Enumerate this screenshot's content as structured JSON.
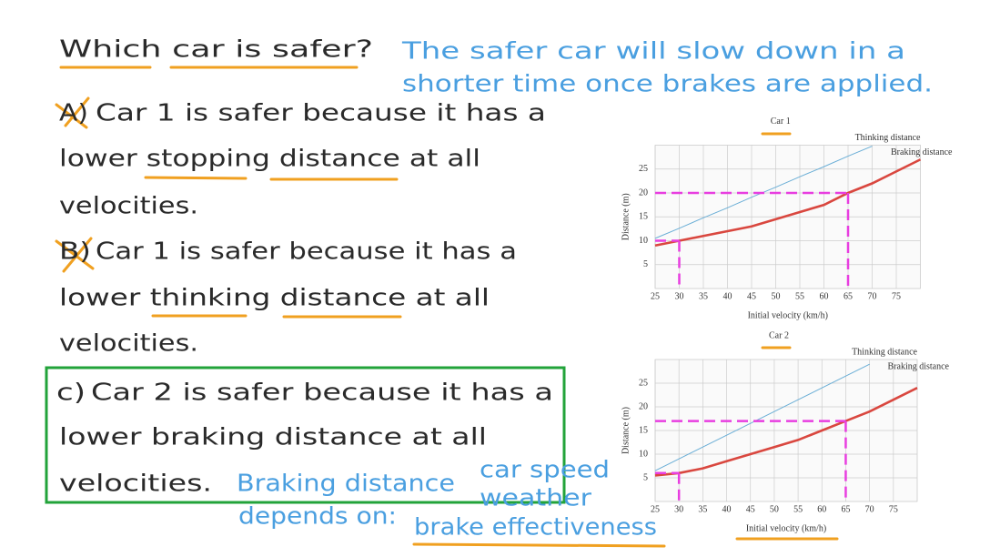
{
  "question": "Which car is safer?",
  "hint": [
    "The safer car will slow down in a",
    "shorter time once brakes are applied."
  ],
  "options": [
    {
      "label": "A)",
      "lines": [
        "Car 1 is safer because it has a",
        "lower stopping distance at all",
        "velocities."
      ]
    },
    {
      "label": "B)",
      "lines": [
        "Car 1 is safer because it has a",
        "lower thinking distance at all",
        "velocities."
      ]
    },
    {
      "label": "c)",
      "lines": [
        "Car 2 is safer because it has a",
        "lower braking distance at all",
        "velocities."
      ]
    }
  ],
  "note": {
    "title": [
      "Braking distance",
      "depends on:"
    ],
    "factors": [
      "car speed",
      "weather",
      "brake effectiveness"
    ]
  },
  "chart_data": [
    {
      "type": "line",
      "title": "Car 1",
      "x_label": "Initial velocity (km/h)",
      "y_label": "Distance (m)",
      "x": [
        25,
        30,
        35,
        40,
        45,
        50,
        55,
        60,
        65,
        70,
        75,
        80
      ],
      "series": [
        {
          "name": "Thinking distance",
          "color": "#6aaed6",
          "values": [
            10.5,
            12.6,
            14.8,
            16.9,
            19.1,
            21.2,
            23.4,
            25.5,
            27.7,
            29.8,
            null,
            null
          ]
        },
        {
          "name": "Braking distance",
          "color": "#d9473f",
          "values": [
            9,
            10,
            11,
            12,
            13,
            14.5,
            16,
            17.5,
            20,
            22,
            24.5,
            27
          ]
        }
      ],
      "xlim": [
        25,
        80
      ],
      "ylim": [
        0,
        30
      ],
      "xticks": [
        25,
        30,
        35,
        40,
        45,
        50,
        55,
        60,
        65,
        70,
        75
      ],
      "yticks": [
        5,
        10,
        15,
        20,
        25
      ],
      "grid": true,
      "guides": [
        {
          "x": 65,
          "y": 20
        },
        {
          "x": 30,
          "y": 10
        }
      ],
      "guide_color": "#e83ee0"
    },
    {
      "type": "line",
      "title": "Car 2",
      "x_label": "Initial velocity (km/h)",
      "y_label": "Distance (m)",
      "x": [
        25,
        30,
        35,
        40,
        45,
        50,
        55,
        60,
        65,
        70,
        75,
        80
      ],
      "series": [
        {
          "name": "Thinking distance",
          "color": "#6aaed6",
          "values": [
            6.5,
            9,
            11.5,
            14,
            16.5,
            19,
            21.5,
            24,
            26.5,
            29,
            null,
            null
          ]
        },
        {
          "name": "Braking distance",
          "color": "#d9473f",
          "values": [
            5.5,
            6,
            7,
            8.5,
            10,
            11.5,
            13,
            15,
            17,
            19,
            21.5,
            24
          ]
        }
      ],
      "xlim": [
        25,
        80
      ],
      "ylim": [
        0,
        30
      ],
      "xticks": [
        25,
        30,
        35,
        40,
        45,
        50,
        55,
        60,
        65,
        70,
        75
      ],
      "yticks": [
        5,
        10,
        15,
        20,
        25
      ],
      "grid": true,
      "guides": [
        {
          "x": 65,
          "y": 17
        },
        {
          "x": 30,
          "y": 6
        }
      ],
      "guide_color": "#e83ee0"
    }
  ]
}
